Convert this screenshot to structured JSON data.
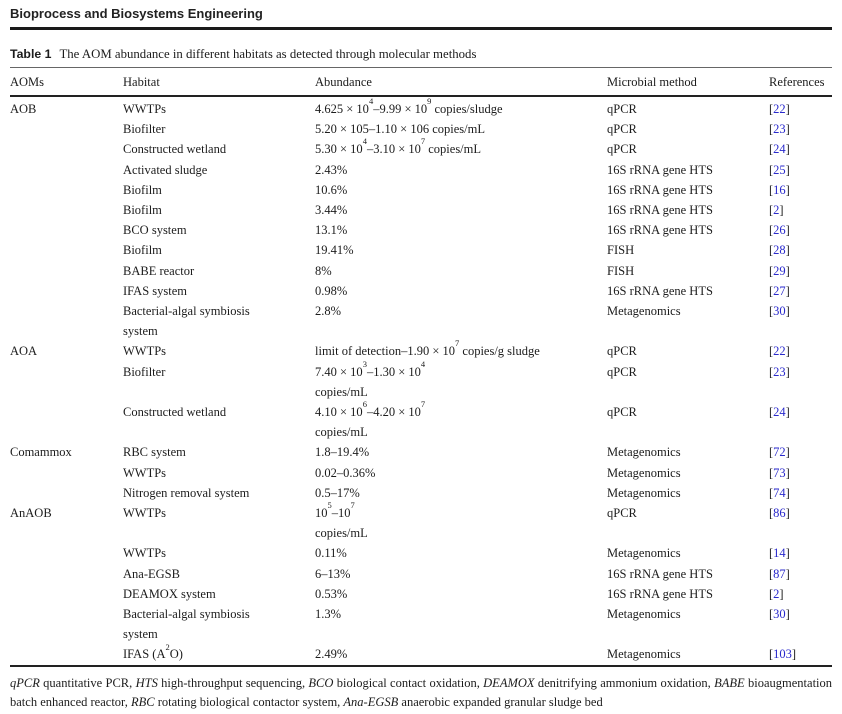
{
  "journal": {
    "title": "Bioprocess and Biosystems Engineering"
  },
  "table": {
    "label": "Table 1",
    "caption": "The AOM abundance in different habitats as detected through molecular methods",
    "columns": [
      "AOMs",
      "Habitat",
      "Abundance",
      "Microbial method",
      "References"
    ],
    "rows": [
      {
        "aom": "AOB",
        "habitat": "WWTPs",
        "abundance": "4.625 × 10^4^–9.99 × 10^9^ copies/sludge",
        "method": "qPCR",
        "ref": "[22]"
      },
      {
        "aom": "",
        "habitat": "Biofilter",
        "abundance": "5.20 × 105–1.10 × 106 copies/mL",
        "method": "qPCR",
        "ref": "[23]"
      },
      {
        "aom": "",
        "habitat": "Constructed wetland",
        "abundance": "5.30 × 10^4^–3.10 × 10^7^ copies/mL",
        "method": "qPCR",
        "ref": "[24]"
      },
      {
        "aom": "",
        "habitat": "Activated sludge",
        "abundance": "2.43%",
        "method": "16S rRNA gene HTS",
        "ref": "[25]"
      },
      {
        "aom": "",
        "habitat": "Biofilm",
        "abundance": "10.6%",
        "method": "16S rRNA gene HTS",
        "ref": "[16]"
      },
      {
        "aom": "",
        "habitat": "Biofilm",
        "abundance": "3.44%",
        "method": "16S rRNA gene HTS",
        "ref": "[2]"
      },
      {
        "aom": "",
        "habitat": "BCO system",
        "abundance": "13.1%",
        "method": "16S rRNA gene HTS",
        "ref": "[26]"
      },
      {
        "aom": "",
        "habitat": "Biofilm",
        "abundance": "19.41%",
        "method": "FISH",
        "ref": "[28]"
      },
      {
        "aom": "",
        "habitat": "BABE reactor",
        "abundance": "8%",
        "method": "FISH",
        "ref": "[29]"
      },
      {
        "aom": "",
        "habitat": "IFAS system",
        "abundance": "0.98%",
        "method": "16S rRNA gene HTS",
        "ref": "[27]"
      },
      {
        "aom": "",
        "habitat": "Bacterial-algal symbiosis\nsystem",
        "abundance": "2.8%",
        "method": "Metagenomics",
        "ref": "[30]"
      },
      {
        "aom": "AOA",
        "habitat": "WWTPs",
        "abundance": "limit of detection–1.90 × 10^7^ copies/g sludge",
        "method": "qPCR",
        "ref": "[22]"
      },
      {
        "aom": "",
        "habitat": "Biofilter",
        "abundance": "7.40 × 10^3^–1.30 × 10^4^\ncopies/mL",
        "method": "qPCR",
        "ref": "[23]"
      },
      {
        "aom": "",
        "habitat": "Constructed wetland",
        "abundance": "4.10 × 10^6^–4.20 × 10^7^\ncopies/mL",
        "method": "qPCR",
        "ref": "[24]"
      },
      {
        "aom": "Comammox",
        "habitat": "RBC system",
        "abundance": "1.8–19.4%",
        "method": "Metagenomics",
        "ref": "[72]"
      },
      {
        "aom": "",
        "habitat": "WWTPs",
        "abundance": "0.02–0.36%",
        "method": "Metagenomics",
        "ref": "[73]"
      },
      {
        "aom": "",
        "habitat": "Nitrogen removal system",
        "abundance": "0.5–17%",
        "method": "Metagenomics",
        "ref": "[74]"
      },
      {
        "aom": "AnAOB",
        "habitat": "WWTPs",
        "abundance": "10^5^–10^7^\ncopies/mL",
        "method": "qPCR",
        "ref": "[86]"
      },
      {
        "aom": "",
        "habitat": "WWTPs",
        "abundance": "0.11%",
        "method": "Metagenomics",
        "ref": "[14]"
      },
      {
        "aom": "",
        "habitat": "Ana-EGSB",
        "abundance": "6–13%",
        "method": "16S rRNA gene HTS",
        "ref": "[87]"
      },
      {
        "aom": "",
        "habitat": "DEAMOX system",
        "abundance": "0.53%",
        "method": "16S rRNA gene HTS",
        "ref": "[2]"
      },
      {
        "aom": "",
        "habitat": "Bacterial-algal symbiosis\nsystem",
        "abundance": "1.3%",
        "method": "Metagenomics",
        "ref": "[30]"
      },
      {
        "aom": "",
        "habitat": "IFAS (A^2^O)",
        "abundance": "2.49%",
        "method": "Metagenomics",
        "ref": "[103]"
      }
    ],
    "footnote": "*qPCR* quantitative PCR, *HTS* high-throughput sequencing, *BCO* biological contact oxidation, *DEAMOX* denitrifying ammonium oxidation, *BABE* bioaugmentation batch enhanced reactor, *RBC* rotating biological contactor system, *Ana-EGSB* anaerobic expanded granular sludge bed"
  },
  "colors": {
    "reference_link": "#2929cc",
    "rule": "#1a1a1a"
  }
}
